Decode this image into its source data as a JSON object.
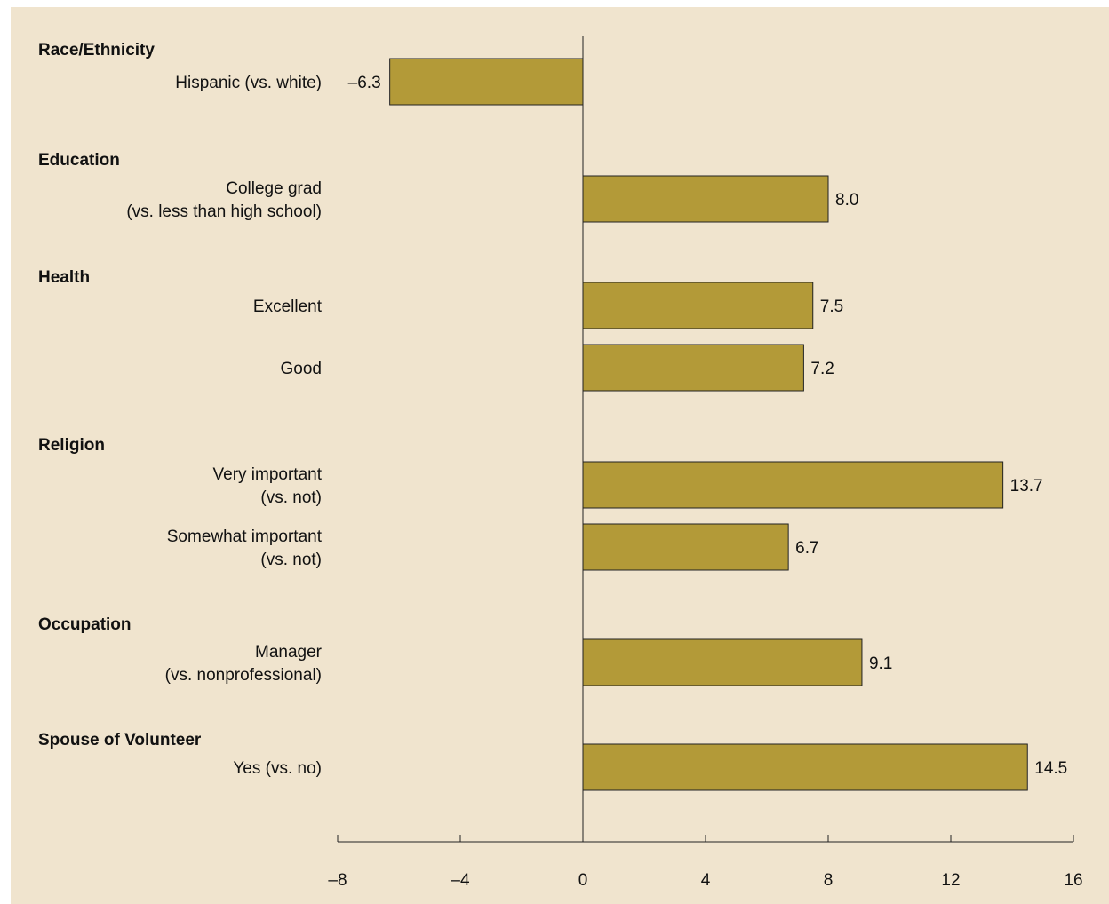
{
  "chart_data": {
    "type": "bar",
    "orientation": "horizontal",
    "xlim": [
      -8,
      16
    ],
    "xticks": [
      -8,
      -4,
      0,
      4,
      8,
      12,
      16
    ],
    "xtick_labels": [
      "–8",
      "–4",
      "0",
      "4",
      "8",
      "12",
      "16"
    ],
    "colors": {
      "bar": "#b39a38",
      "bar_edge": "#222222",
      "background": "#f0e4ce"
    },
    "groups": [
      {
        "title": "Race/Ethnicity",
        "items": [
          {
            "label": [
              "Hispanic (vs. white)"
            ],
            "value": -6.3,
            "value_label": "–6.3"
          }
        ]
      },
      {
        "title": "Education",
        "items": [
          {
            "label": [
              "College grad",
              "(vs. less than high school)"
            ],
            "value": 8.0,
            "value_label": "8.0"
          }
        ]
      },
      {
        "title": "Health",
        "items": [
          {
            "label": [
              "Excellent"
            ],
            "value": 7.5,
            "value_label": "7.5"
          },
          {
            "label": [
              "Good"
            ],
            "value": 7.2,
            "value_label": "7.2"
          }
        ]
      },
      {
        "title": "Religion",
        "items": [
          {
            "label": [
              "Very important",
              "(vs. not)"
            ],
            "value": 13.7,
            "value_label": "13.7"
          },
          {
            "label": [
              "Somewhat important",
              "(vs. not)"
            ],
            "value": 6.7,
            "value_label": "6.7"
          }
        ]
      },
      {
        "title": "Occupation",
        "items": [
          {
            "label": [
              "Manager",
              "(vs. nonprofessional)"
            ],
            "value": 9.1,
            "value_label": "9.1"
          }
        ]
      },
      {
        "title": "Spouse of Volunteer",
        "items": [
          {
            "label": [
              "Yes (vs. no)"
            ],
            "value": 14.5,
            "value_label": "14.5"
          }
        ]
      }
    ]
  }
}
